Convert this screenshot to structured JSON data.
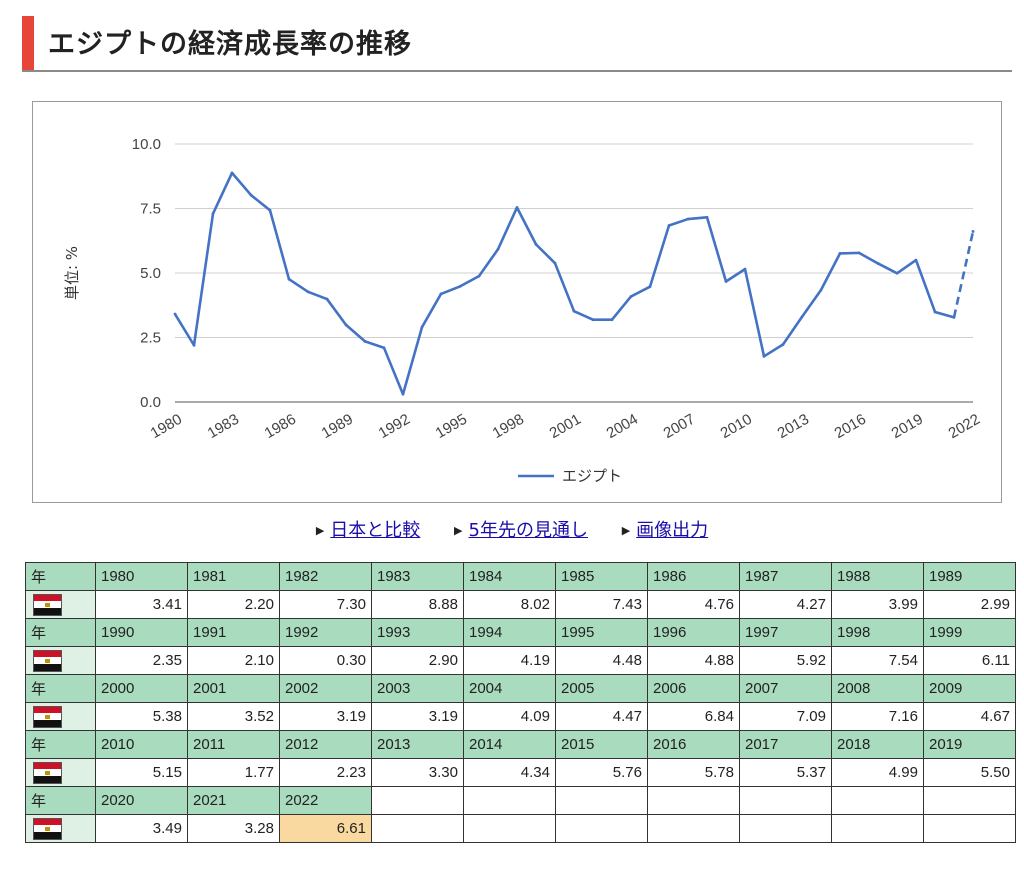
{
  "page": {
    "title": "エジプトの経済成長率の推移",
    "accent_color": "#e8453a"
  },
  "links": [
    {
      "label": "日本と比較",
      "icon": "triangle-right-icon"
    },
    {
      "label": "5年先の見通し",
      "icon": "triangle-right-icon"
    },
    {
      "label": "画像出力",
      "icon": "triangle-right-icon"
    }
  ],
  "chart_data": {
    "type": "line",
    "title": "",
    "xlabel": "",
    "ylabel": "単位: %",
    "ylim": [
      0,
      10
    ],
    "yticks": [
      "0.0",
      "2.5",
      "5.0",
      "7.5",
      "10.0"
    ],
    "xticks": [
      "1980",
      "1983",
      "1986",
      "1989",
      "1992",
      "1995",
      "1998",
      "2001",
      "2004",
      "2007",
      "2010",
      "2013",
      "2016",
      "2019",
      "2022"
    ],
    "x": [
      1980,
      1981,
      1982,
      1983,
      1984,
      1985,
      1986,
      1987,
      1988,
      1989,
      1990,
      1991,
      1992,
      1993,
      1994,
      1995,
      1996,
      1997,
      1998,
      1999,
      2000,
      2001,
      2002,
      2003,
      2004,
      2005,
      2006,
      2007,
      2008,
      2009,
      2010,
      2011,
      2012,
      2013,
      2014,
      2015,
      2016,
      2017,
      2018,
      2019,
      2020,
      2021,
      2022
    ],
    "series": [
      {
        "name": "エジプト",
        "color": "#4472c4",
        "values": [
          3.41,
          2.2,
          7.3,
          8.88,
          8.02,
          7.43,
          4.76,
          4.27,
          3.99,
          2.99,
          2.35,
          2.1,
          0.3,
          2.9,
          4.19,
          4.48,
          4.88,
          5.92,
          7.54,
          6.11,
          5.38,
          3.52,
          3.19,
          3.19,
          4.09,
          4.47,
          6.84,
          7.09,
          7.16,
          4.67,
          5.15,
          1.77,
          2.23,
          3.3,
          4.34,
          5.76,
          5.78,
          5.37,
          4.99,
          5.5,
          3.49,
          3.28,
          6.61
        ],
        "forecast_from": 2021
      }
    ],
    "grid": true,
    "legend": "bottom"
  },
  "table": {
    "row_label": "年",
    "flag_icon": "egypt-flag-icon",
    "forecast_highlight": "#fad9a1",
    "rows": [
      {
        "years": [
          "1980",
          "1981",
          "1982",
          "1983",
          "1984",
          "1985",
          "1986",
          "1987",
          "1988",
          "1989"
        ],
        "values": [
          "3.41",
          "2.20",
          "7.30",
          "8.88",
          "8.02",
          "7.43",
          "4.76",
          "4.27",
          "3.99",
          "2.99"
        ]
      },
      {
        "years": [
          "1990",
          "1991",
          "1992",
          "1993",
          "1994",
          "1995",
          "1996",
          "1997",
          "1998",
          "1999"
        ],
        "values": [
          "2.35",
          "2.10",
          "0.30",
          "2.90",
          "4.19",
          "4.48",
          "4.88",
          "5.92",
          "7.54",
          "6.11"
        ]
      },
      {
        "years": [
          "2000",
          "2001",
          "2002",
          "2003",
          "2004",
          "2005",
          "2006",
          "2007",
          "2008",
          "2009"
        ],
        "values": [
          "5.38",
          "3.52",
          "3.19",
          "3.19",
          "4.09",
          "4.47",
          "6.84",
          "7.09",
          "7.16",
          "4.67"
        ]
      },
      {
        "years": [
          "2010",
          "2011",
          "2012",
          "2013",
          "2014",
          "2015",
          "2016",
          "2017",
          "2018",
          "2019"
        ],
        "values": [
          "5.15",
          "1.77",
          "2.23",
          "3.30",
          "4.34",
          "5.76",
          "5.78",
          "5.37",
          "4.99",
          "5.50"
        ]
      },
      {
        "years": [
          "2020",
          "2021",
          "2022"
        ],
        "values": [
          "3.49",
          "3.28",
          "6.61"
        ]
      }
    ]
  }
}
